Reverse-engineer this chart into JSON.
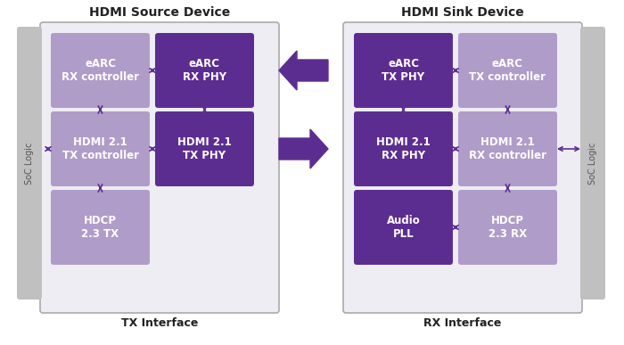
{
  "fig_width": 7.0,
  "fig_height": 3.87,
  "bg_color": "#ffffff",
  "title_left": "HDMI Source Device",
  "title_right": "HDMI Sink Device",
  "label_left": "TX Interface",
  "label_right": "RX Interface",
  "soc_label": "SoC Logic",
  "outer_box_color": "#e8e8ee",
  "outer_box_edge": "#aaaaaa",
  "soc_bar_color": "#c0c0c0",
  "light_purple": "#b09cc8",
  "dark_purple": "#5c2d91",
  "arrow_color": "#5c2d91",
  "text_color": "#ffffff",
  "left_blocks": [
    {
      "label": "eARC\nRX controller",
      "color": "#b09cc8",
      "col": 0,
      "row": 0
    },
    {
      "label": "eARC\nRX PHY",
      "color": "#5c2d91",
      "col": 1,
      "row": 0
    },
    {
      "label": "HDMI 2.1\nTX controller",
      "color": "#b09cc8",
      "col": 0,
      "row": 1
    },
    {
      "label": "HDMI 2.1\nTX PHY",
      "color": "#5c2d91",
      "col": 1,
      "row": 1
    },
    {
      "label": "HDCP\n2.3 TX",
      "color": "#b09cc8",
      "col": 0,
      "row": 2
    }
  ],
  "right_blocks": [
    {
      "label": "eARC\nTX PHY",
      "color": "#5c2d91",
      "col": 0,
      "row": 0
    },
    {
      "label": "eARC\nTX controller",
      "color": "#b09cc8",
      "col": 1,
      "row": 0
    },
    {
      "label": "HDMI 2.1\nRX PHY",
      "color": "#5c2d91",
      "col": 0,
      "row": 1
    },
    {
      "label": "HDMI 2.1\nRX controller",
      "color": "#b09cc8",
      "col": 1,
      "row": 1
    },
    {
      "label": "Audio\nPLL",
      "color": "#5c2d91",
      "col": 0,
      "row": 2
    },
    {
      "label": "HDCP\n2.3 RX",
      "color": "#b09cc8",
      "col": 1,
      "row": 2
    }
  ]
}
